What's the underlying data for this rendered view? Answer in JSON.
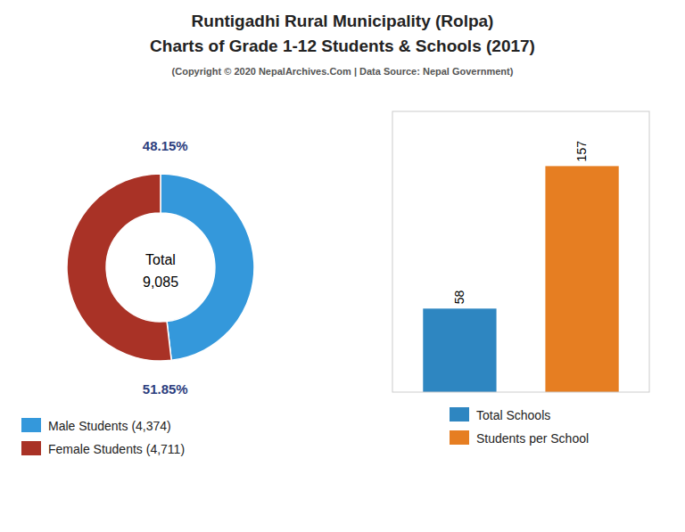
{
  "chart_data": [
    {
      "type": "pie",
      "title": "Runtigadhi Rural Municipality (Rolpa)",
      "subtitle": "Charts of Grade 1-12 Students & Schools (2017)",
      "annotations": [
        "(Copyright © 2020 NepalArchives.Com | Data Source: Nepal Government)",
        "Total",
        "9,085"
      ],
      "categories": [
        "Male Students (4,374)",
        "Female Students (4,711)"
      ],
      "values": [
        48.15,
        51.85
      ],
      "value_labels": [
        "48.15%",
        "51.85%"
      ],
      "colors": [
        "#3498db",
        "#a93226"
      ],
      "data_labels": true,
      "legend": "bottom"
    },
    {
      "type": "bar",
      "categories": [
        "Total Schools",
        "Students per School"
      ],
      "values": [
        58,
        157
      ],
      "colors": [
        "#2e86c1",
        "#e67e22"
      ],
      "ylim": [
        0,
        195
      ],
      "tick_labels": false,
      "data_labels": true,
      "legend": "bottom"
    }
  ]
}
